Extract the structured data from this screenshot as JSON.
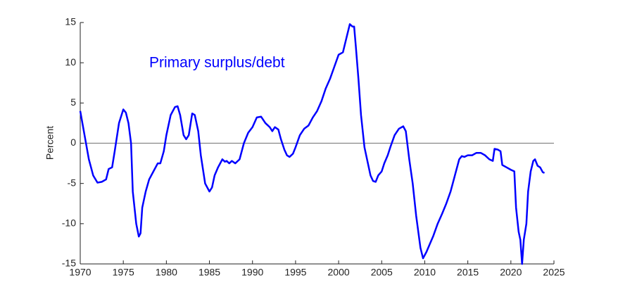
{
  "chart_data": {
    "type": "line",
    "annotation": "Primary surplus/debt",
    "ylabel": "Percent",
    "x": [
      1970,
      1970.5,
      1971,
      1971.5,
      1972,
      1972.5,
      1973,
      1973.3,
      1973.7,
      1974,
      1974.5,
      1975,
      1975.3,
      1975.6,
      1975.9,
      1976.1,
      1976.5,
      1976.8,
      1977,
      1977.2,
      1977.6,
      1978,
      1978.5,
      1979,
      1979.3,
      1979.7,
      1980,
      1980.5,
      1981,
      1981.3,
      1981.6,
      1982,
      1982.3,
      1982.6,
      1983,
      1983.3,
      1983.7,
      1984,
      1984.5,
      1985,
      1985.3,
      1985.6,
      1986,
      1986.5,
      1986.8,
      1987,
      1987.3,
      1987.6,
      1988,
      1988.5,
      1989,
      1989.5,
      1990,
      1990.5,
      1991,
      1991.5,
      1992,
      1992.3,
      1992.6,
      1993,
      1993.3,
      1993.7,
      1994,
      1994.3,
      1994.7,
      1995,
      1995.5,
      1996,
      1996.5,
      1997,
      1997.5,
      1998,
      1998.5,
      1999,
      1999.5,
      2000,
      2000.5,
      2001,
      2001.3,
      2001.6,
      2001.8,
      2002,
      2002.3,
      2002.6,
      2003,
      2003.3,
      2003.7,
      2004,
      2004.3,
      2004.6,
      2005,
      2005.3,
      2005.7,
      2006,
      2006.5,
      2007,
      2007.5,
      2007.8,
      2008.2,
      2008.6,
      2009,
      2009.5,
      2009.8,
      2010.2,
      2010.6,
      2011,
      2011.5,
      2012,
      2012.5,
      2013,
      2013.5,
      2014,
      2014.3,
      2014.6,
      2015,
      2015.5,
      2016,
      2016.5,
      2017,
      2017.5,
      2017.9,
      2018.1,
      2018.5,
      2018.8,
      2019,
      2019.5,
      2020,
      2020.4,
      2020.6,
      2020.9,
      2021.1,
      2021.3,
      2021.5,
      2021.8,
      2022,
      2022.3,
      2022.6,
      2022.8,
      2023.1,
      2023.4,
      2023.7,
      2023.9
    ],
    "series": [
      {
        "name": "Primary surplus/debt",
        "color": "#0000ff",
        "values": [
          4.0,
          1,
          -2,
          -4,
          -4.9,
          -4.8,
          -4.5,
          -3.2,
          -3,
          -1,
          2.5,
          4.2,
          3.8,
          2.5,
          0,
          -6,
          -10,
          -11.6,
          -11.2,
          -8,
          -6,
          -4.5,
          -3.5,
          -2.5,
          -2.5,
          -1,
          1,
          3.5,
          4.5,
          4.6,
          3.5,
          1,
          0.5,
          1,
          3.7,
          3.5,
          1.5,
          -1.5,
          -5,
          -6,
          -5.5,
          -4,
          -3,
          -2,
          -2.3,
          -2.2,
          -2.5,
          -2.2,
          -2.5,
          -2,
          0,
          1.3,
          2,
          3.2,
          3.3,
          2.5,
          2,
          1.5,
          2,
          1.7,
          0.5,
          -0.8,
          -1.5,
          -1.7,
          -1.3,
          -0.5,
          1,
          1.8,
          2.2,
          3.2,
          4,
          5.2,
          6.8,
          8,
          9.5,
          11,
          11.3,
          13.5,
          14.8,
          14.5,
          14.5,
          12,
          8,
          3.5,
          -0.5,
          -2,
          -4,
          -4.7,
          -4.8,
          -4,
          -3.5,
          -2.5,
          -1.5,
          -0.5,
          1,
          1.8,
          2.1,
          1.5,
          -2,
          -5,
          -9,
          -13,
          -14.3,
          -13.5,
          -12.5,
          -11.5,
          -10,
          -8.8,
          -7.5,
          -6,
          -4,
          -2,
          -1.6,
          -1.7,
          -1.5,
          -1.5,
          -1.2,
          -1.2,
          -1.5,
          -2,
          -2.2,
          -0.7,
          -0.8,
          -1,
          -2.7,
          -3,
          -3.3,
          -3.5,
          -8,
          -11,
          -12,
          -15,
          -12,
          -10,
          -6,
          -3.5,
          -2.2,
          -2.0,
          -2.8,
          -3,
          -3.6,
          -3.7
        ]
      }
    ],
    "xlim": [
      1970,
      2025
    ],
    "xticks": [
      1970,
      1975,
      1980,
      1985,
      1990,
      1995,
      2000,
      2005,
      2010,
      2015,
      2020,
      2025
    ],
    "ylim": [
      -15,
      15
    ],
    "yticks": [
      -15,
      -10,
      -5,
      0,
      5,
      10,
      15
    ]
  }
}
